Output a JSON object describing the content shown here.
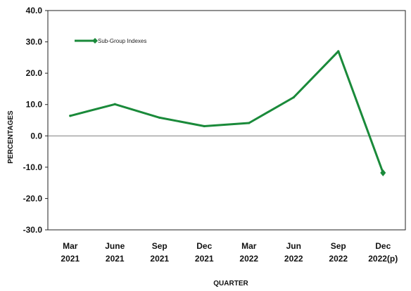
{
  "chart_data": {
    "type": "line",
    "categories": [
      [
        "Mar",
        "2021"
      ],
      [
        "June",
        "2021"
      ],
      [
        "Sep",
        "2021"
      ],
      [
        "Dec",
        "2021"
      ],
      [
        "Mar",
        "2022"
      ],
      [
        "Jun",
        "2022"
      ],
      [
        "Sep",
        "2022"
      ],
      [
        "Dec",
        "2022(p)"
      ]
    ],
    "series": [
      {
        "name": "Sub-Group Indexes",
        "values": [
          6.4,
          10.1,
          5.8,
          3.1,
          4.1,
          12.3,
          27.0,
          -11.8
        ],
        "color": "#1a8a3a"
      }
    ],
    "yticks": [
      "40.0",
      "30.0",
      "20.0",
      "10.0",
      "0.0",
      "-10.0",
      "-20.0",
      "-30.0"
    ],
    "ylim": [
      -30,
      40
    ],
    "xlabel": "QUARTER",
    "ylabel": "PERCENTAGES",
    "grid": false,
    "legend_position": "top-left"
  }
}
